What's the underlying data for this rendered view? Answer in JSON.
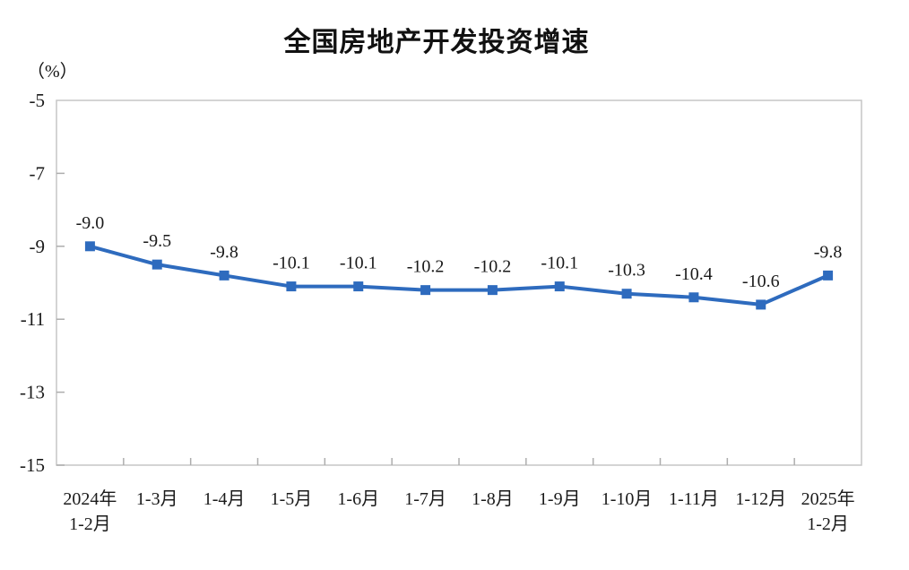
{
  "chart": {
    "title": "全国房地产开发投资增速",
    "unit_label": "（%）"
  },
  "chart_data": {
    "type": "line",
    "title": "全国房地产开发投资增速",
    "ylabel": "（%）",
    "xlabel": "",
    "categories": [
      "2024年\n1-2月",
      "1-3月",
      "1-4月",
      "1-5月",
      "1-6月",
      "1-7月",
      "1-8月",
      "1-9月",
      "1-10月",
      "1-11月",
      "1-12月",
      "2025年\n1-2月"
    ],
    "series": [
      {
        "name": "全国房地产开发投资增速",
        "values": [
          -9.0,
          -9.5,
          -9.8,
          -10.1,
          -10.1,
          -10.2,
          -10.2,
          -10.1,
          -10.3,
          -10.4,
          -10.6,
          -9.8
        ]
      }
    ],
    "data_labels": [
      "-9.0",
      "-9.5",
      "-9.8",
      "-10.1",
      "-10.1",
      "-10.2",
      "-10.2",
      "-10.1",
      "-10.3",
      "-10.4",
      "-10.6",
      "-9.8"
    ],
    "ylim": [
      -15,
      -5
    ],
    "yticks": [
      -5,
      -7,
      -9,
      -11,
      -13,
      -15
    ],
    "ytick_labels": [
      "-5",
      "-7",
      "-9",
      "-11",
      "-13",
      "-15"
    ],
    "grid": false,
    "legend_position": "none",
    "line_color": "#2E6BBE",
    "marker": "square",
    "marker_color": "#2E6BBE",
    "axis_color": "#c6c6c6",
    "tick_color": "#adadad",
    "label_color": "#1a1a1a"
  }
}
